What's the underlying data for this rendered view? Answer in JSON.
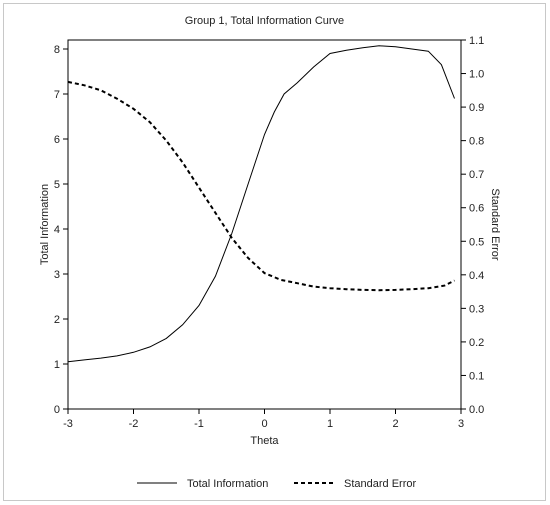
{
  "chart_data": {
    "type": "line",
    "title": "Group 1, Total Information Curve",
    "xlabel": "Theta",
    "ylabel_left": "Total Information",
    "ylabel_right": "Standard Error",
    "xlim": [
      -3,
      3
    ],
    "ylim_left": [
      0,
      8.2
    ],
    "ylim_right": [
      0,
      1.1
    ],
    "x_ticks": [
      -3,
      -2,
      -1,
      0,
      1,
      2,
      3
    ],
    "y_ticks_left": [
      0,
      1,
      2,
      3,
      4,
      5,
      6,
      7,
      8
    ],
    "y_ticks_right": [
      0.0,
      0.1,
      0.2,
      0.3,
      0.4,
      0.5,
      0.6,
      0.7,
      0.8,
      0.9,
      1.0,
      1.1
    ],
    "y_tick_labels_right": [
      "0.0",
      "0.1",
      "0.2",
      "0.3",
      "0.4",
      "0.5",
      "0.6",
      "0.7",
      "0.8",
      "0.9",
      "1.0",
      "1.1"
    ],
    "grid": false,
    "legend_position": "bottom",
    "series": [
      {
        "name": "Total Information",
        "axis": "left",
        "style": "solid",
        "color": "#000000",
        "x": [
          -3.0,
          -2.75,
          -2.5,
          -2.25,
          -2.0,
          -1.75,
          -1.5,
          -1.25,
          -1.0,
          -0.75,
          -0.5,
          -0.25,
          0.0,
          0.15,
          0.3,
          0.5,
          0.75,
          1.0,
          1.25,
          1.5,
          1.75,
          2.0,
          2.25,
          2.5,
          2.7,
          2.9
        ],
        "values": [
          1.05,
          1.09,
          1.13,
          1.18,
          1.26,
          1.38,
          1.57,
          1.87,
          2.3,
          2.95,
          3.9,
          5.0,
          6.1,
          6.6,
          7.0,
          7.25,
          7.6,
          7.9,
          7.97,
          8.03,
          8.07,
          8.05,
          8.0,
          7.95,
          7.65,
          6.9
        ]
      },
      {
        "name": "Standard Error",
        "axis": "right",
        "style": "dashed",
        "color": "#000000",
        "x": [
          -3.0,
          -2.75,
          -2.5,
          -2.25,
          -2.0,
          -1.75,
          -1.5,
          -1.25,
          -1.0,
          -0.75,
          -0.5,
          -0.25,
          0.0,
          0.25,
          0.5,
          0.75,
          1.0,
          1.25,
          1.5,
          1.75,
          2.0,
          2.25,
          2.5,
          2.75,
          2.9
        ],
        "values": [
          0.975,
          0.965,
          0.95,
          0.925,
          0.895,
          0.855,
          0.8,
          0.735,
          0.66,
          0.585,
          0.51,
          0.45,
          0.405,
          0.385,
          0.375,
          0.365,
          0.36,
          0.357,
          0.355,
          0.354,
          0.355,
          0.357,
          0.36,
          0.368,
          0.383
        ]
      }
    ]
  }
}
